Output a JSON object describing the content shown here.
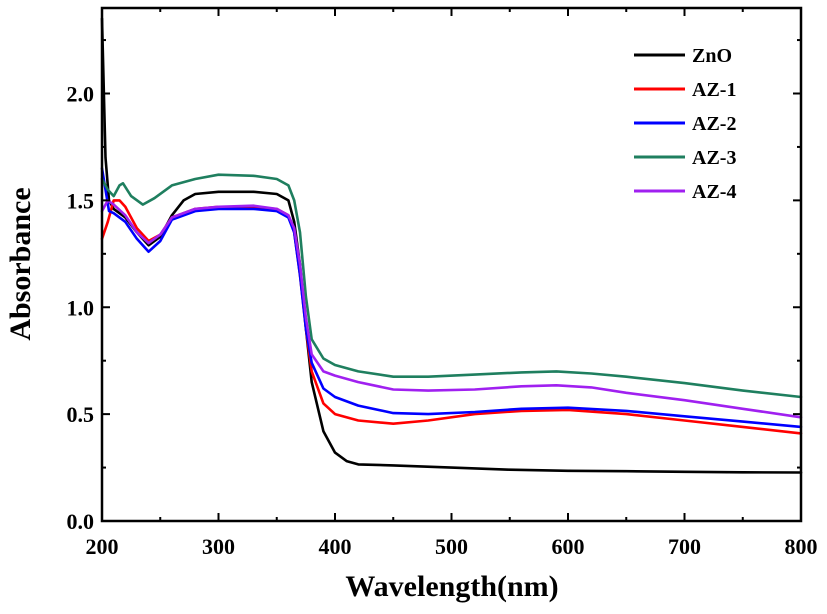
{
  "chart_data": {
    "type": "line",
    "xlabel": "Wavelength(nm)",
    "ylabel": "Absorbance",
    "xlim": [
      200,
      800
    ],
    "ylim": [
      0,
      2.4
    ],
    "xticks": [
      200,
      300,
      400,
      500,
      600,
      700,
      800
    ],
    "xtick_labels": [
      "200",
      "300",
      "400",
      "500",
      "600",
      "700",
      "800"
    ],
    "yticks": [
      0.0,
      0.5,
      1.0,
      1.5,
      2.0
    ],
    "ytick_labels": [
      "0.0",
      "0.5",
      "1.0",
      "1.5",
      "2.0"
    ],
    "grid": false,
    "legend_position": "top-right",
    "series": [
      {
        "name": "ZnO",
        "color": "#000000",
        "points": [
          [
            200,
            2.35
          ],
          [
            203,
            1.7
          ],
          [
            206,
            1.5
          ],
          [
            210,
            1.46
          ],
          [
            220,
            1.42
          ],
          [
            230,
            1.35
          ],
          [
            240,
            1.29
          ],
          [
            250,
            1.33
          ],
          [
            260,
            1.43
          ],
          [
            270,
            1.5
          ],
          [
            280,
            1.53
          ],
          [
            300,
            1.54
          ],
          [
            330,
            1.54
          ],
          [
            350,
            1.53
          ],
          [
            360,
            1.5
          ],
          [
            365,
            1.4
          ],
          [
            370,
            1.2
          ],
          [
            375,
            0.9
          ],
          [
            380,
            0.65
          ],
          [
            390,
            0.42
          ],
          [
            400,
            0.32
          ],
          [
            410,
            0.28
          ],
          [
            420,
            0.265
          ],
          [
            450,
            0.26
          ],
          [
            500,
            0.25
          ],
          [
            550,
            0.24
          ],
          [
            600,
            0.235
          ],
          [
            650,
            0.233
          ],
          [
            700,
            0.23
          ],
          [
            750,
            0.228
          ],
          [
            800,
            0.227
          ]
        ]
      },
      {
        "name": "AZ-1",
        "color": "#ff0000",
        "points": [
          [
            200,
            1.32
          ],
          [
            205,
            1.4
          ],
          [
            210,
            1.5
          ],
          [
            215,
            1.5
          ],
          [
            220,
            1.47
          ],
          [
            230,
            1.37
          ],
          [
            240,
            1.31
          ],
          [
            250,
            1.34
          ],
          [
            260,
            1.42
          ],
          [
            280,
            1.46
          ],
          [
            300,
            1.47
          ],
          [
            320,
            1.47
          ],
          [
            350,
            1.46
          ],
          [
            360,
            1.43
          ],
          [
            365,
            1.35
          ],
          [
            370,
            1.15
          ],
          [
            375,
            0.9
          ],
          [
            380,
            0.7
          ],
          [
            390,
            0.55
          ],
          [
            400,
            0.5
          ],
          [
            420,
            0.47
          ],
          [
            450,
            0.455
          ],
          [
            480,
            0.47
          ],
          [
            520,
            0.5
          ],
          [
            560,
            0.515
          ],
          [
            600,
            0.52
          ],
          [
            650,
            0.5
          ],
          [
            700,
            0.47
          ],
          [
            750,
            0.44
          ],
          [
            800,
            0.41
          ]
        ]
      },
      {
        "name": "AZ-2",
        "color": "#0000ff",
        "points": [
          [
            200,
            1.65
          ],
          [
            203,
            1.55
          ],
          [
            206,
            1.45
          ],
          [
            210,
            1.44
          ],
          [
            220,
            1.4
          ],
          [
            230,
            1.32
          ],
          [
            240,
            1.26
          ],
          [
            250,
            1.31
          ],
          [
            260,
            1.41
          ],
          [
            280,
            1.45
          ],
          [
            300,
            1.46
          ],
          [
            330,
            1.46
          ],
          [
            350,
            1.45
          ],
          [
            360,
            1.42
          ],
          [
            365,
            1.35
          ],
          [
            370,
            1.15
          ],
          [
            375,
            0.9
          ],
          [
            380,
            0.74
          ],
          [
            390,
            0.62
          ],
          [
            400,
            0.58
          ],
          [
            420,
            0.54
          ],
          [
            450,
            0.505
          ],
          [
            480,
            0.5
          ],
          [
            520,
            0.51
          ],
          [
            560,
            0.525
          ],
          [
            600,
            0.53
          ],
          [
            650,
            0.515
          ],
          [
            700,
            0.49
          ],
          [
            750,
            0.465
          ],
          [
            800,
            0.44
          ]
        ]
      },
      {
        "name": "AZ-3",
        "color": "#1f7f5f",
        "points": [
          [
            200,
            1.6
          ],
          [
            205,
            1.55
          ],
          [
            210,
            1.52
          ],
          [
            215,
            1.57
          ],
          [
            218,
            1.58
          ],
          [
            225,
            1.52
          ],
          [
            235,
            1.48
          ],
          [
            245,
            1.51
          ],
          [
            260,
            1.57
          ],
          [
            280,
            1.6
          ],
          [
            300,
            1.62
          ],
          [
            330,
            1.615
          ],
          [
            350,
            1.6
          ],
          [
            360,
            1.57
          ],
          [
            365,
            1.5
          ],
          [
            370,
            1.35
          ],
          [
            375,
            1.05
          ],
          [
            380,
            0.85
          ],
          [
            390,
            0.76
          ],
          [
            400,
            0.73
          ],
          [
            420,
            0.7
          ],
          [
            450,
            0.675
          ],
          [
            480,
            0.675
          ],
          [
            520,
            0.685
          ],
          [
            560,
            0.695
          ],
          [
            590,
            0.7
          ],
          [
            620,
            0.69
          ],
          [
            650,
            0.675
          ],
          [
            700,
            0.645
          ],
          [
            750,
            0.61
          ],
          [
            800,
            0.58
          ]
        ]
      },
      {
        "name": "AZ-4",
        "color": "#a020f0",
        "points": [
          [
            200,
            1.45
          ],
          [
            205,
            1.5
          ],
          [
            210,
            1.48
          ],
          [
            220,
            1.43
          ],
          [
            230,
            1.35
          ],
          [
            240,
            1.3
          ],
          [
            250,
            1.34
          ],
          [
            260,
            1.42
          ],
          [
            280,
            1.46
          ],
          [
            300,
            1.47
          ],
          [
            330,
            1.475
          ],
          [
            350,
            1.46
          ],
          [
            360,
            1.43
          ],
          [
            365,
            1.37
          ],
          [
            370,
            1.2
          ],
          [
            375,
            0.95
          ],
          [
            380,
            0.78
          ],
          [
            390,
            0.7
          ],
          [
            400,
            0.68
          ],
          [
            420,
            0.65
          ],
          [
            450,
            0.615
          ],
          [
            480,
            0.61
          ],
          [
            520,
            0.615
          ],
          [
            560,
            0.63
          ],
          [
            590,
            0.635
          ],
          [
            620,
            0.625
          ],
          [
            650,
            0.6
          ],
          [
            700,
            0.565
          ],
          [
            750,
            0.525
          ],
          [
            800,
            0.485
          ]
        ]
      }
    ]
  }
}
